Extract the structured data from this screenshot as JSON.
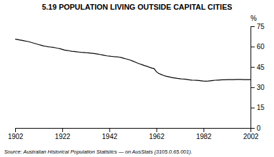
{
  "chart_data": {
    "type": "line",
    "title": "5.19   POPULATION LIVING OUTSIDE CAPITAL CITIES",
    "y_label": "%",
    "source": "Source: Australian Historical Population Statistics — on AusStats (3105.0.65.001).",
    "color": "#000000",
    "grid": false,
    "xlim": [
      1902,
      2002
    ],
    "ylim": [
      0,
      75
    ],
    "xticks": [
      1902,
      1922,
      1942,
      1962,
      1982,
      2002
    ],
    "yticks": [
      0,
      15,
      30,
      45,
      60,
      75
    ],
    "x": [
      1902,
      1903,
      1904,
      1905,
      1906,
      1907,
      1908,
      1909,
      1910,
      1911,
      1912,
      1913,
      1914,
      1915,
      1916,
      1917,
      1918,
      1919,
      1920,
      1921,
      1922,
      1923,
      1924,
      1925,
      1926,
      1927,
      1928,
      1929,
      1930,
      1931,
      1932,
      1933,
      1934,
      1935,
      1936,
      1937,
      1938,
      1939,
      1940,
      1941,
      1942,
      1943,
      1944,
      1945,
      1946,
      1947,
      1948,
      1949,
      1950,
      1951,
      1952,
      1953,
      1954,
      1955,
      1956,
      1957,
      1958,
      1959,
      1960,
      1961,
      1962,
      1963,
      1964,
      1965,
      1966,
      1967,
      1968,
      1969,
      1970,
      1971,
      1972,
      1973,
      1974,
      1975,
      1976,
      1977,
      1978,
      1979,
      1980,
      1981,
      1982,
      1983,
      1984,
      1985,
      1986,
      1987,
      1988,
      1989,
      1990,
      1991,
      1992,
      1993,
      1994,
      1995,
      1996,
      1997,
      1998,
      1999,
      2000,
      2001,
      2002
    ],
    "values": [
      65.5,
      65.2,
      64.9,
      64.6,
      64.2,
      63.9,
      63.5,
      63.0,
      62.5,
      62.0,
      61.5,
      61.0,
      60.5,
      60.2,
      59.9,
      59.7,
      59.5,
      59.2,
      58.8,
      58.5,
      58.0,
      57.5,
      57.2,
      56.9,
      56.6,
      56.4,
      56.2,
      56.0,
      55.8,
      55.7,
      55.5,
      55.4,
      55.2,
      55.0,
      54.8,
      54.5,
      54.2,
      53.9,
      53.5,
      53.2,
      53.0,
      52.8,
      52.6,
      52.5,
      52.3,
      52.0,
      51.5,
      51.0,
      50.5,
      50.0,
      49.3,
      48.6,
      47.8,
      47.2,
      46.6,
      46.0,
      45.5,
      44.8,
      44.2,
      43.8,
      41.5,
      40.2,
      39.5,
      38.8,
      38.2,
      37.8,
      37.4,
      37.1,
      36.8,
      36.5,
      36.3,
      36.1,
      36.0,
      35.8,
      35.5,
      35.3,
      35.2,
      35.1,
      35.0,
      34.8,
      34.6,
      34.5,
      34.6,
      34.8,
      35.0,
      35.2,
      35.3,
      35.4,
      35.5,
      35.5,
      35.6,
      35.6,
      35.7,
      35.7,
      35.8,
      35.8,
      35.8,
      35.7,
      35.7,
      35.6,
      35.6
    ]
  }
}
